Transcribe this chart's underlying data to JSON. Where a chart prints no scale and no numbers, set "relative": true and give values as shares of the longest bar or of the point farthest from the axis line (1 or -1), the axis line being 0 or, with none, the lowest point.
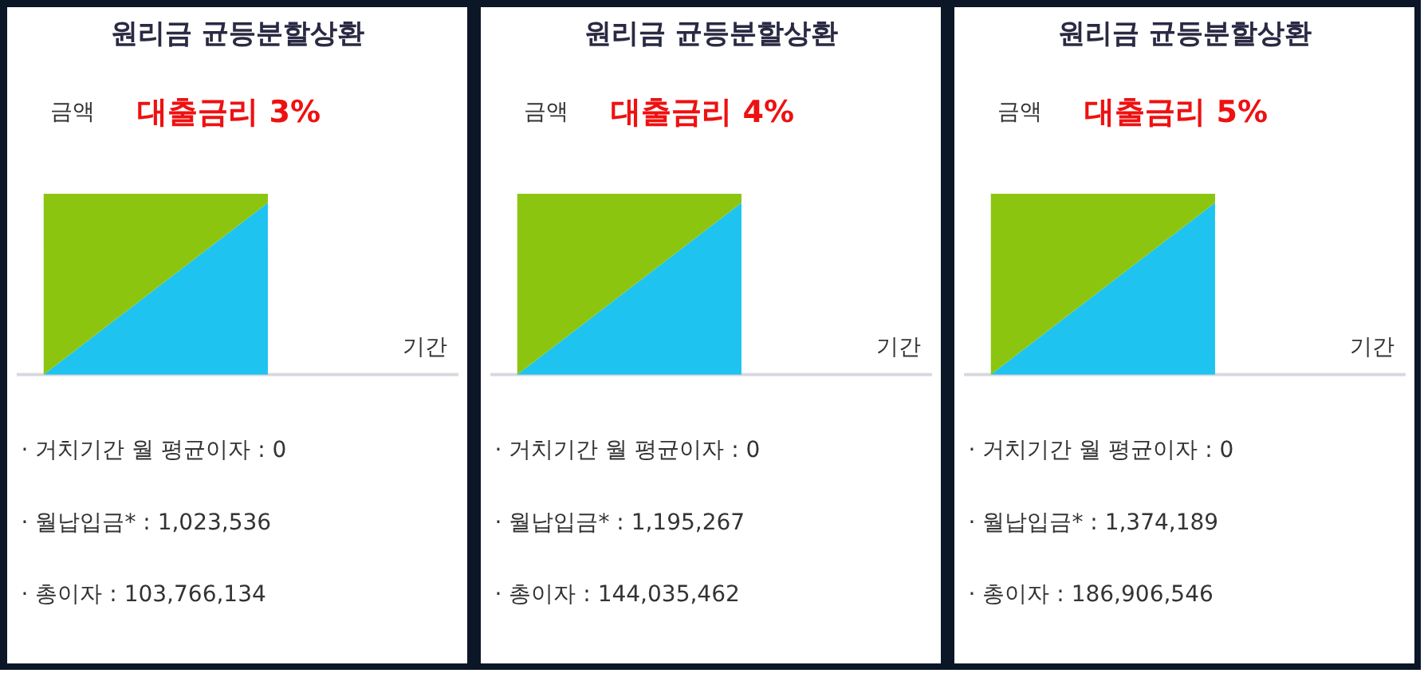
{
  "chart_data": [
    {
      "type": "area",
      "title": "원리금 균등분할상환",
      "subtitle": "대출금리  3%",
      "ylabel": "금액",
      "xlabel": "기간",
      "categories": [
        null,
        null
      ],
      "relative": true,
      "stacked": true,
      "series": [
        {
          "color": "#1fc3ef",
          "values": [
            0,
            0.95
          ]
        },
        {
          "color": "#8cc510",
          "values": [
            1,
            0.05
          ]
        }
      ],
      "annotations": [
        "· 거치기간 월 평균이자 : 0",
        "· 월납입금* : 1,023,536",
        "· 총이자 : 103,766,134"
      ]
    },
    {
      "type": "area",
      "title": "원리금 균등분할상환",
      "subtitle": "대출금리  4%",
      "ylabel": "금액",
      "xlabel": "기간",
      "categories": [
        null,
        null
      ],
      "relative": true,
      "stacked": true,
      "series": [
        {
          "color": "#1fc3ef",
          "values": [
            0,
            0.95
          ]
        },
        {
          "color": "#8cc510",
          "values": [
            1,
            0.05
          ]
        }
      ],
      "annotations": [
        "· 거치기간 월 평균이자 : 0",
        "· 월납입금* : 1,195,267",
        "· 총이자 : 144,035,462"
      ]
    },
    {
      "type": "area",
      "title": "원리금 균등분할상환",
      "subtitle": "대출금리  5%",
      "ylabel": "금액",
      "xlabel": "기간",
      "categories": [
        null,
        null
      ],
      "relative": true,
      "stacked": true,
      "series": [
        {
          "color": "#1fc3ef",
          "values": [
            0,
            0.95
          ]
        },
        {
          "color": "#8cc510",
          "values": [
            1,
            0.05
          ]
        }
      ],
      "annotations": [
        "· 거치기간 월 평균이자 : 0",
        "· 월납입금* : 1,374,189",
        "· 총이자 : 186,906,546"
      ]
    }
  ]
}
